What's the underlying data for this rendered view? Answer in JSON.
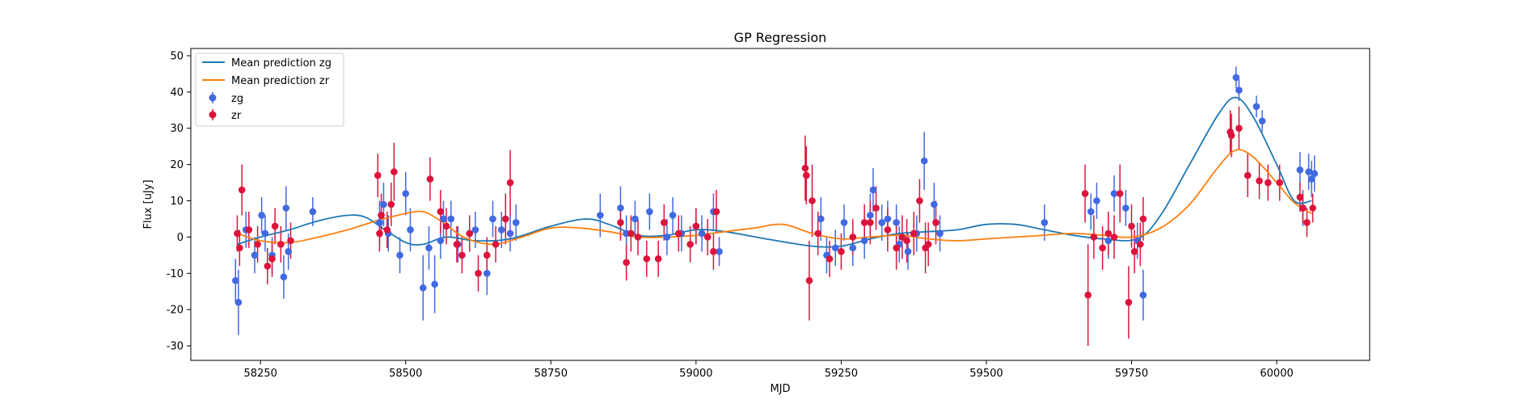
{
  "chart_data": {
    "type": "scatter",
    "title": "GP Regression",
    "xlabel": "MJD",
    "ylabel": "Flux [uJy]",
    "xlim": [
      58130,
      60160
    ],
    "ylim": [
      -34,
      52
    ],
    "xticks": [
      58250,
      58500,
      58750,
      59000,
      59250,
      59500,
      59750,
      60000
    ],
    "yticks": [
      -30,
      -20,
      -10,
      0,
      10,
      20,
      30,
      40,
      50
    ],
    "grid": false,
    "legend_position": "upper-left",
    "legend": [
      "Mean prediction zg",
      "Mean prediction zr",
      "zg",
      "zr"
    ],
    "colors": {
      "mean_zg": "#1f77b4",
      "mean_zr": "#ff7f0e",
      "points_zg": "#4169e1",
      "points_zr": "#dc143c"
    },
    "series": [
      {
        "name": "Mean prediction zg",
        "kind": "line",
        "color": "#1f77b4",
        "x": [
          58210,
          58250,
          58300,
          58350,
          58400,
          58430,
          58460,
          58500,
          58530,
          58570,
          58620,
          58680,
          58750,
          58810,
          58850,
          58900,
          58950,
          59000,
          59050,
          59120,
          59200,
          59250,
          59300,
          59350,
          59400,
          59450,
          59500,
          59550,
          59600,
          59650,
          59700,
          59760,
          59800,
          59850,
          59900,
          59930,
          59960,
          60000,
          60030,
          60060
        ],
        "y": [
          -2,
          0,
          2,
          4.5,
          6,
          5.5,
          2.5,
          -1.5,
          -2,
          0,
          -1,
          -0.5,
          3,
          5,
          3.5,
          0.5,
          0.5,
          2,
          1.5,
          -0.5,
          -2.5,
          -2.5,
          -0.5,
          1,
          1.5,
          2,
          3.5,
          3.5,
          2,
          0.5,
          -0.5,
          -0.5,
          6,
          20,
          34,
          38.5,
          33,
          20,
          10,
          10
        ]
      },
      {
        "name": "Mean prediction zr",
        "kind": "line",
        "color": "#ff7f0e",
        "x": [
          58210,
          58250,
          58300,
          58350,
          58400,
          58450,
          58500,
          58530,
          58560,
          58600,
          58650,
          58700,
          58750,
          58800,
          58850,
          58900,
          58950,
          59000,
          59050,
          59100,
          59150,
          59200,
          59250,
          59300,
          59350,
          59400,
          59450,
          59500,
          59550,
          59600,
          59650,
          59700,
          59750,
          59800,
          59850,
          59900,
          59930,
          59960,
          60000,
          60030,
          60060
        ],
        "y": [
          1,
          -1,
          -1.5,
          0,
          2,
          4.5,
          6.5,
          7,
          4.5,
          0,
          -2,
          0,
          2.5,
          2.5,
          1.5,
          0,
          0,
          0.5,
          1.5,
          2.5,
          3.5,
          1,
          -0.5,
          0,
          0.5,
          -0.5,
          -1,
          -0.5,
          0,
          0.5,
          1,
          0.5,
          0,
          2.5,
          9,
          19.5,
          24,
          22,
          15,
          9.5,
          6.5
        ]
      },
      {
        "name": "zg",
        "kind": "errorbar",
        "color": "#4169e1",
        "x": [
          58207,
          58212,
          58225,
          58240,
          58252,
          58258,
          58270,
          58290,
          58294,
          58298,
          58340,
          58455,
          58462,
          58470,
          58490,
          58500,
          58508,
          58530,
          58540,
          58550,
          58560,
          58565,
          58578,
          58590,
          58610,
          58620,
          58640,
          58650,
          58665,
          58680,
          58690,
          58835,
          58870,
          58880,
          58895,
          58920,
          58950,
          58960,
          58975,
          59000,
          59010,
          59030,
          59040,
          59215,
          59225,
          59240,
          59255,
          59270,
          59290,
          59300,
          59305,
          59320,
          59330,
          59345,
          59350,
          59365,
          59380,
          59393,
          59410,
          59420,
          59600,
          59680,
          59690,
          59710,
          59720,
          59740,
          59760,
          59770,
          59930,
          59935,
          59965,
          59975,
          60040,
          60045,
          60055,
          60060,
          60065
        ],
        "y": [
          -12,
          -18,
          2,
          -5,
          6,
          1,
          -5,
          -11,
          8,
          -4,
          7,
          4,
          9,
          1,
          -5,
          12,
          2,
          -14,
          -3,
          -13,
          -1,
          5,
          5,
          -2,
          1,
          2,
          -10,
          5,
          2,
          1,
          4,
          6,
          8,
          1,
          5,
          7,
          0,
          6,
          1,
          3,
          1,
          7,
          -4,
          5,
          -5,
          -3,
          4,
          -3,
          -1,
          6,
          13,
          4,
          5,
          4,
          -2,
          -4,
          1,
          21,
          9,
          1,
          4,
          7,
          10,
          -1,
          12,
          8,
          -1,
          -16,
          44,
          40.5,
          36,
          32,
          18.5,
          8,
          18,
          16,
          17.5
        ],
        "err": [
          6,
          9,
          5,
          5,
          5,
          5,
          5,
          6,
          6,
          5,
          4,
          6,
          6,
          5,
          5,
          6,
          6,
          9,
          6,
          8,
          5,
          5,
          5,
          5,
          5,
          5,
          6,
          5,
          5,
          5,
          5,
          6,
          6,
          5,
          5,
          5,
          5,
          5,
          5,
          5,
          5,
          5,
          4,
          6,
          5,
          5,
          5,
          5,
          5,
          6,
          6,
          5,
          5,
          5,
          5,
          5,
          5,
          8,
          6,
          5,
          5,
          5,
          5,
          5,
          5,
          5,
          5,
          7,
          3,
          3,
          3,
          3,
          5,
          5,
          5,
          5,
          5
        ]
      },
      {
        "name": "zr",
        "kind": "errorbar",
        "color": "#dc143c",
        "x": [
          58210,
          58214,
          58218,
          58230,
          58245,
          58262,
          58270,
          58275,
          58285,
          58302,
          58452,
          58455,
          58458,
          58468,
          58475,
          58480,
          58542,
          58560,
          58570,
          58588,
          58597,
          58610,
          58625,
          58640,
          58655,
          58672,
          58680,
          58870,
          58880,
          58888,
          58900,
          58915,
          58935,
          58945,
          58970,
          58990,
          59000,
          59020,
          59030,
          59035,
          59188,
          59190,
          59195,
          59200,
          59210,
          59230,
          59250,
          59270,
          59290,
          59300,
          59310,
          59330,
          59345,
          59355,
          59363,
          59375,
          59385,
          59395,
          59400,
          59413,
          59670,
          59675,
          59685,
          59700,
          59710,
          59720,
          59730,
          59745,
          59750,
          59755,
          59765,
          59770,
          59920,
          59922,
          59935,
          59950,
          59970,
          59985,
          60005,
          60040,
          60045,
          60052,
          60062
        ],
        "y": [
          1,
          -3,
          13,
          2,
          -2,
          -8,
          -6,
          3,
          -2,
          -1,
          17,
          1,
          6,
          2,
          9,
          18,
          16,
          7,
          3,
          -2,
          -5,
          1,
          -10,
          -5,
          -2,
          5,
          15,
          4,
          -7,
          1,
          0,
          -6,
          -6,
          4,
          1,
          -2,
          3,
          0,
          -4,
          7,
          19,
          17,
          -12,
          10,
          1,
          -6,
          -4,
          0,
          4,
          4,
          8,
          2,
          -3,
          0,
          -1,
          1,
          10,
          -3,
          -2,
          4,
          12,
          -16,
          0,
          -3,
          1,
          0,
          12,
          -18,
          3,
          -4,
          -2,
          5,
          29,
          28,
          30,
          17,
          15.5,
          15,
          15,
          11,
          8,
          4,
          8
        ],
        "err": [
          5,
          5,
          7,
          5,
          5,
          5,
          5,
          5,
          5,
          5,
          6,
          5,
          6,
          5,
          6,
          8,
          6,
          6,
          5,
          5,
          5,
          5,
          5,
          5,
          5,
          7,
          9,
          5,
          5,
          5,
          5,
          5,
          5,
          5,
          5,
          5,
          5,
          5,
          5,
          6,
          9,
          8,
          11,
          10,
          6,
          5,
          5,
          5,
          5,
          6,
          6,
          6,
          6,
          6,
          6,
          6,
          6,
          7,
          6,
          6,
          8,
          14,
          6,
          6,
          6,
          6,
          8,
          10,
          6,
          6,
          6,
          6,
          6,
          6,
          6,
          6,
          5,
          5,
          5,
          4,
          4,
          4,
          4
        ]
      }
    ]
  }
}
